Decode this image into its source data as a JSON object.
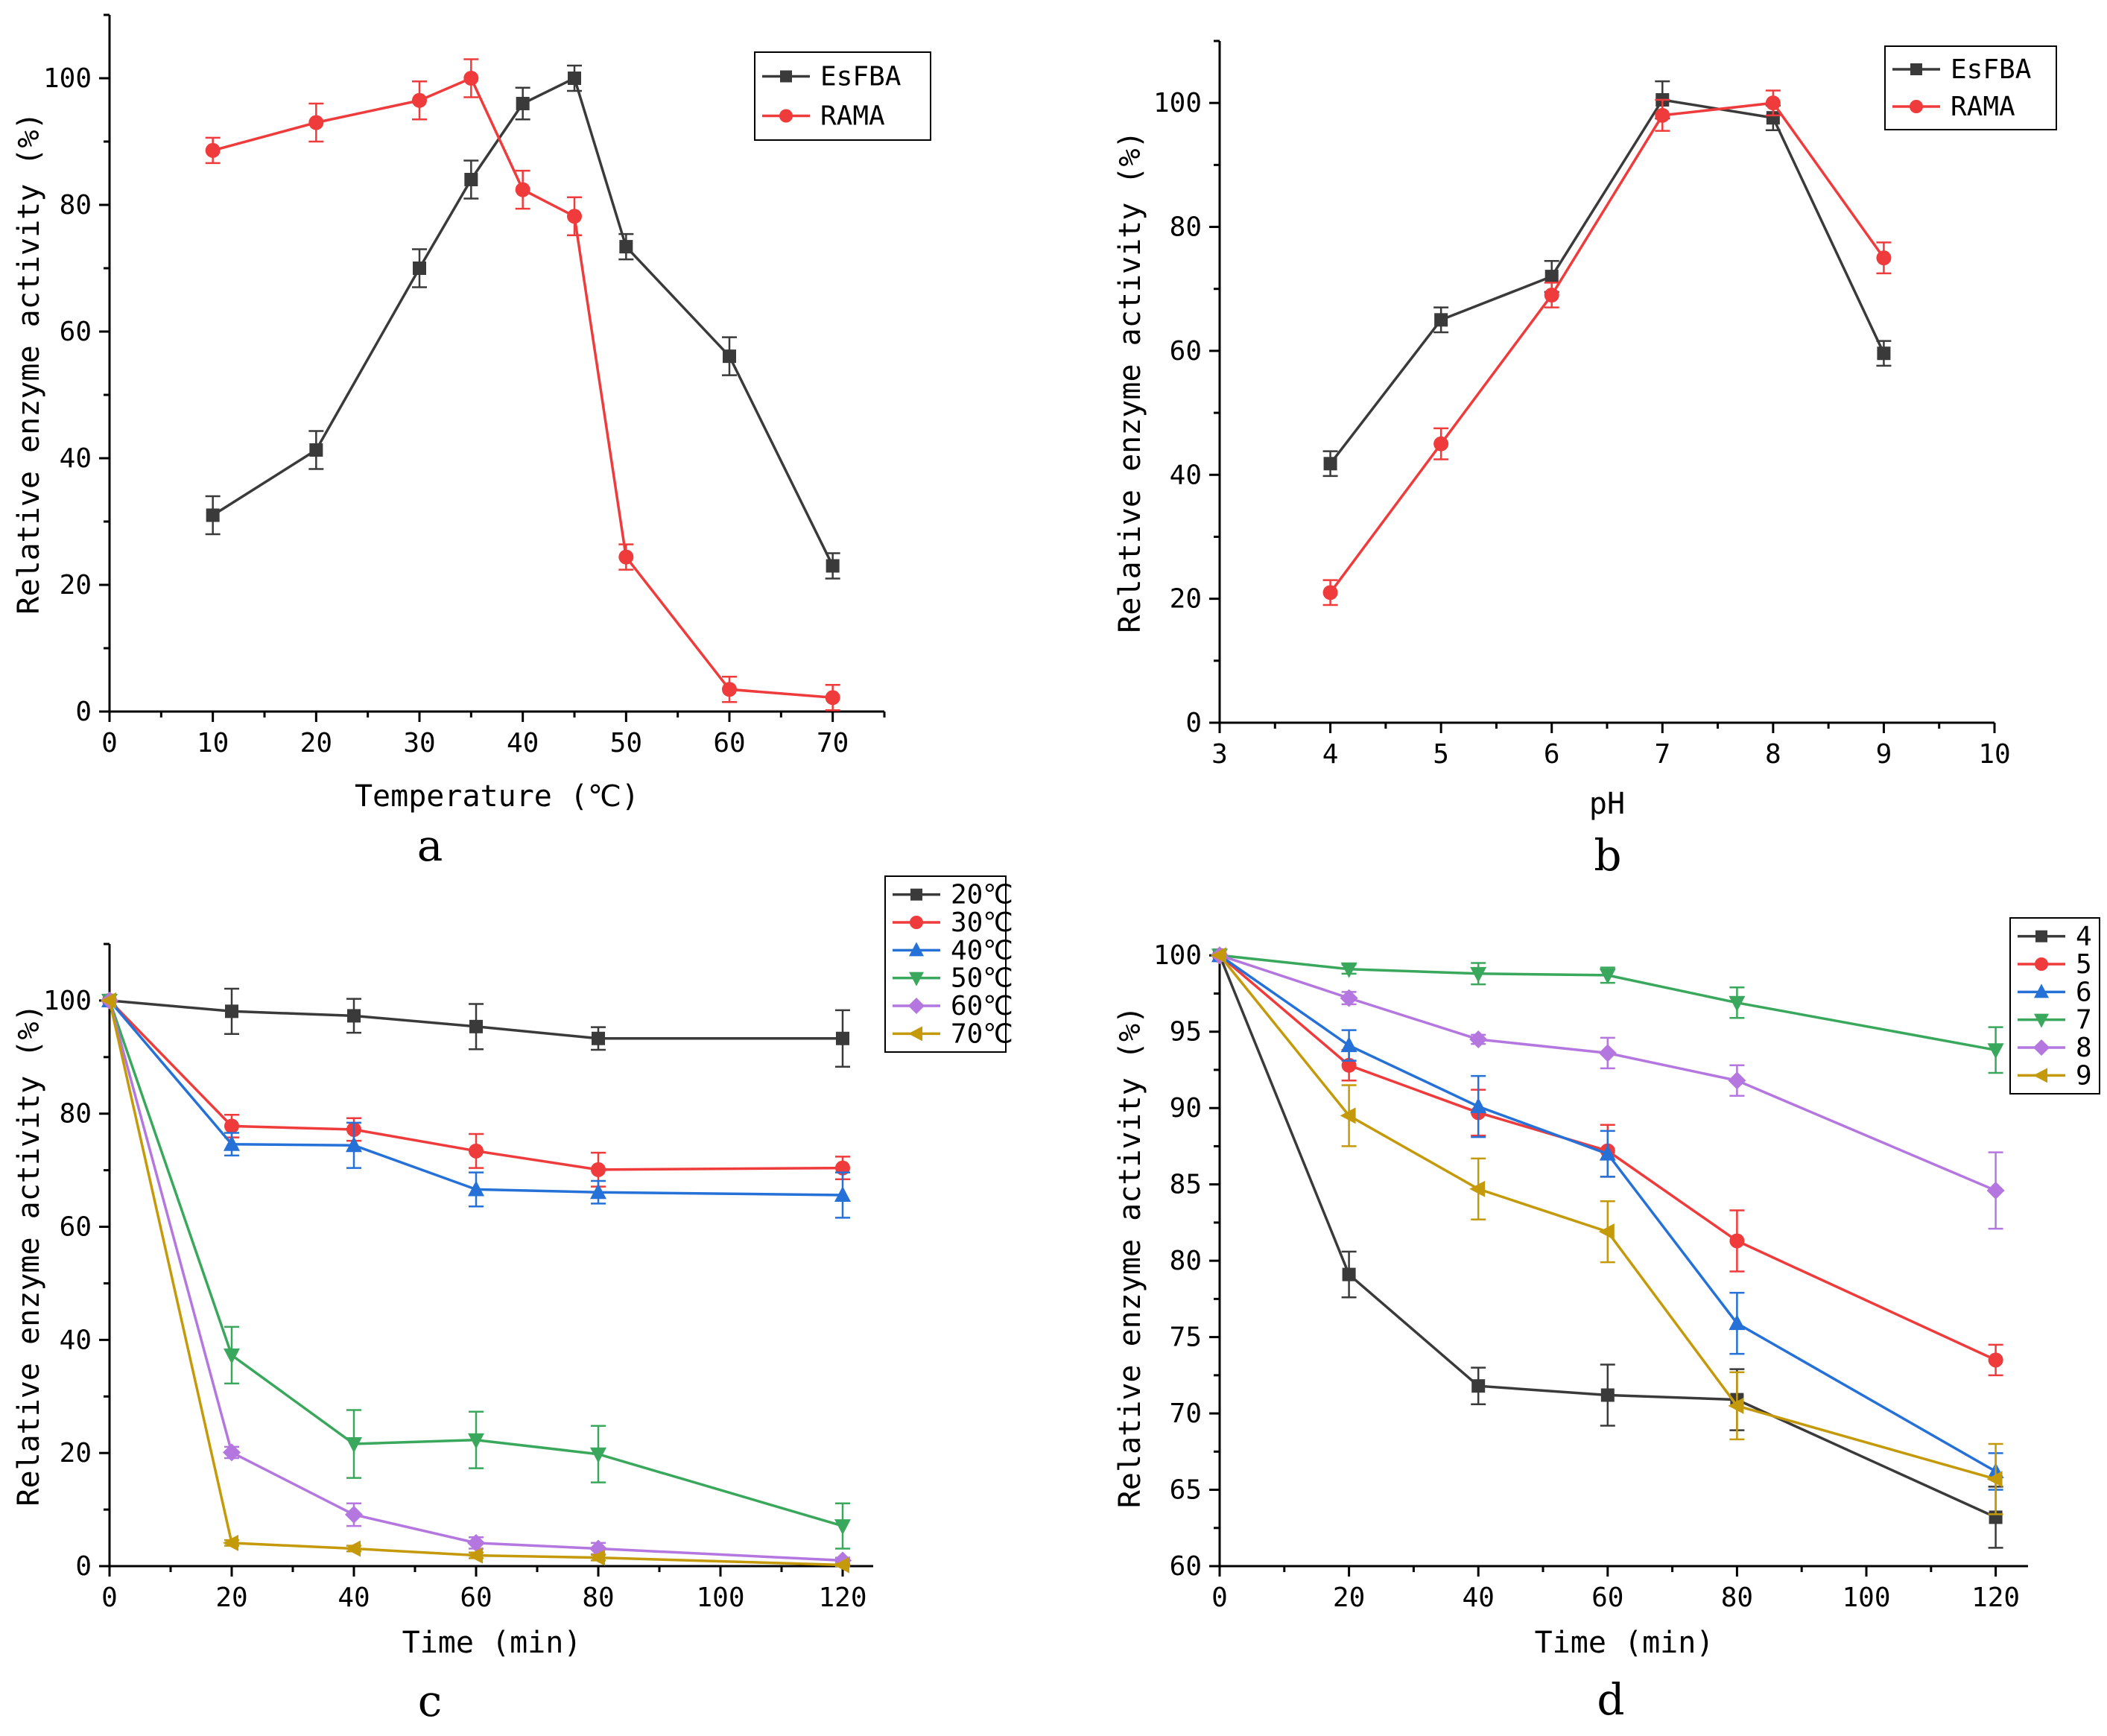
{
  "chart_data": [
    {
      "type": "line",
      "panel": "a",
      "xlabel": "Temperature (℃)",
      "ylabel": "Relative enzyme activity (%)",
      "xlim": [
        0,
        75
      ],
      "ylim": [
        0,
        110
      ],
      "xticks": [
        0,
        10,
        20,
        30,
        40,
        50,
        60,
        70
      ],
      "yticks": [
        0,
        20,
        40,
        60,
        80,
        100
      ],
      "legend_position": "top-right",
      "series": [
        {
          "name": "EsFBA",
          "color": "#3a3a3a",
          "marker": "square",
          "x": [
            10,
            20,
            30,
            35,
            40,
            45,
            50,
            60,
            70
          ],
          "y": [
            31,
            41.3,
            70,
            84,
            96,
            100,
            73.4,
            56.1,
            23
          ],
          "err": [
            3,
            3,
            3,
            3,
            2.5,
            2,
            2,
            3,
            2
          ]
        },
        {
          "name": "RAMA",
          "color": "#ef3b3b",
          "marker": "circle",
          "x": [
            10,
            20,
            30,
            35,
            40,
            45,
            50,
            60,
            70
          ],
          "y": [
            88.6,
            93,
            96.5,
            100,
            82.4,
            78.2,
            24.4,
            3.5,
            2.2
          ],
          "err": [
            2,
            3,
            3,
            3,
            3,
            3,
            2,
            2,
            2
          ]
        }
      ]
    },
    {
      "type": "line",
      "panel": "b",
      "xlabel": "pH",
      "ylabel": "Relative enzyme activity (%)",
      "xlim": [
        3,
        10
      ],
      "ylim": [
        0,
        110
      ],
      "xticks": [
        3,
        4,
        5,
        6,
        7,
        8,
        9,
        10
      ],
      "yticks": [
        0,
        20,
        40,
        60,
        80,
        100
      ],
      "legend_position": "top-right",
      "series": [
        {
          "name": "EsFBA",
          "color": "#3a3a3a",
          "marker": "square",
          "x": [
            4,
            5,
            6,
            7,
            8,
            9
          ],
          "y": [
            41.8,
            65,
            72,
            100.5,
            97.6,
            59.6
          ],
          "err": [
            2,
            2,
            2.5,
            3,
            2,
            2
          ]
        },
        {
          "name": "RAMA",
          "color": "#ef3b3b",
          "marker": "circle",
          "x": [
            4,
            5,
            6,
            7,
            8,
            9
          ],
          "y": [
            21,
            45,
            69,
            98,
            100,
            75
          ],
          "err": [
            2,
            2.5,
            2,
            2.5,
            2,
            2.5
          ]
        }
      ]
    },
    {
      "type": "line",
      "panel": "c",
      "xlabel": "Time (min)",
      "ylabel": "Relative enzyme activity (%)",
      "xlim": [
        0,
        125
      ],
      "ylim": [
        0,
        110
      ],
      "xticks": [
        0,
        20,
        40,
        60,
        80,
        100,
        120
      ],
      "yticks": [
        0,
        20,
        40,
        60,
        80,
        100
      ],
      "legend_position": "top-right",
      "series": [
        {
          "name": "20℃",
          "color": "#3a3a3a",
          "marker": "square",
          "x": [
            0,
            20,
            40,
            60,
            80,
            120
          ],
          "y": [
            100,
            98.1,
            97.3,
            95.4,
            93.3,
            93.3
          ],
          "err": [
            0,
            4,
            3,
            4,
            2,
            5
          ]
        },
        {
          "name": "30℃",
          "color": "#ef3b3b",
          "marker": "circle",
          "x": [
            0,
            20,
            40,
            60,
            80,
            120
          ],
          "y": [
            100,
            77.8,
            77.2,
            73.4,
            70.1,
            70.4
          ],
          "err": [
            0,
            2,
            2,
            3,
            3,
            2
          ]
        },
        {
          "name": "40℃",
          "color": "#2571d8",
          "marker": "triangle-up",
          "x": [
            0,
            20,
            40,
            60,
            80,
            120
          ],
          "y": [
            100,
            74.6,
            74.4,
            66.6,
            66.1,
            65.6
          ],
          "err": [
            0,
            2,
            4,
            3,
            2,
            4
          ]
        },
        {
          "name": "50℃",
          "color": "#3aa85c",
          "marker": "triangle-down",
          "x": [
            0,
            20,
            40,
            60,
            80,
            120
          ],
          "y": [
            100,
            37.3,
            21.6,
            22.3,
            19.8,
            7.1
          ],
          "err": [
            0,
            5,
            6,
            5,
            5,
            4
          ]
        },
        {
          "name": "60℃",
          "color": "#b477e0",
          "marker": "diamond",
          "x": [
            0,
            20,
            40,
            60,
            80,
            120
          ],
          "y": [
            100,
            20.1,
            9.1,
            4.1,
            3.1,
            1
          ],
          "err": [
            0,
            1,
            2,
            1,
            1,
            0.5
          ]
        },
        {
          "name": "70℃",
          "color": "#c49a0b",
          "marker": "triangle-left",
          "x": [
            0,
            20,
            40,
            60,
            80,
            120
          ],
          "y": [
            100,
            4.1,
            3.1,
            1.9,
            1.5,
            0.2
          ],
          "err": [
            0,
            0.5,
            0.5,
            0.5,
            0.5,
            0.2
          ]
        }
      ]
    },
    {
      "type": "line",
      "panel": "d",
      "xlabel": "Time (min)",
      "ylabel": "Relative enzyme activity (%)",
      "xlim": [
        0,
        125
      ],
      "ylim": [
        60,
        100.5
      ],
      "xticks": [
        0,
        20,
        40,
        60,
        80,
        100,
        120
      ],
      "yticks": [
        60,
        65,
        70,
        75,
        80,
        85,
        90,
        95,
        100
      ],
      "legend_position": "top-right",
      "series": [
        {
          "name": "4",
          "color": "#3a3a3a",
          "marker": "square",
          "x": [
            0,
            20,
            40,
            60,
            80,
            120
          ],
          "y": [
            100,
            79.1,
            71.8,
            71.2,
            70.9,
            63.2
          ],
          "err": [
            0,
            1.5,
            1.2,
            2,
            2,
            2
          ]
        },
        {
          "name": "5",
          "color": "#ef3b3b",
          "marker": "circle",
          "x": [
            0,
            20,
            40,
            60,
            80,
            120
          ],
          "y": [
            100,
            92.8,
            89.7,
            87.2,
            81.3,
            73.5
          ],
          "err": [
            0,
            1,
            1.5,
            1.7,
            2,
            1
          ]
        },
        {
          "name": "6",
          "color": "#2571d8",
          "marker": "triangle-up",
          "x": [
            0,
            20,
            40,
            60,
            80,
            120
          ],
          "y": [
            100,
            94.1,
            90.1,
            87.0,
            75.9,
            66.2
          ],
          "err": [
            0,
            1,
            2,
            1.5,
            2,
            1.2
          ]
        },
        {
          "name": "7",
          "color": "#3aa85c",
          "marker": "triangle-down",
          "x": [
            0,
            20,
            40,
            60,
            80,
            120
          ],
          "y": [
            100,
            99.1,
            98.8,
            98.7,
            96.9,
            93.8
          ],
          "err": [
            0,
            0.3,
            0.7,
            0.5,
            1,
            1.5
          ]
        },
        {
          "name": "8",
          "color": "#b477e0",
          "marker": "diamond",
          "x": [
            0,
            20,
            40,
            60,
            80,
            120
          ],
          "y": [
            100,
            97.2,
            94.5,
            93.6,
            91.8,
            84.6
          ],
          "err": [
            0,
            0.4,
            0.3,
            1,
            1,
            2.5
          ]
        },
        {
          "name": "9",
          "color": "#c49a0b",
          "marker": "triangle-left",
          "x": [
            0,
            20,
            40,
            60,
            80,
            120
          ],
          "y": [
            100,
            89.5,
            84.7,
            81.9,
            70.5,
            65.7
          ],
          "err": [
            0,
            2,
            2,
            2,
            2.2,
            2.3
          ]
        }
      ]
    }
  ],
  "panel_labels": {
    "a": "a",
    "b": "b",
    "c": "c",
    "d": "d"
  }
}
